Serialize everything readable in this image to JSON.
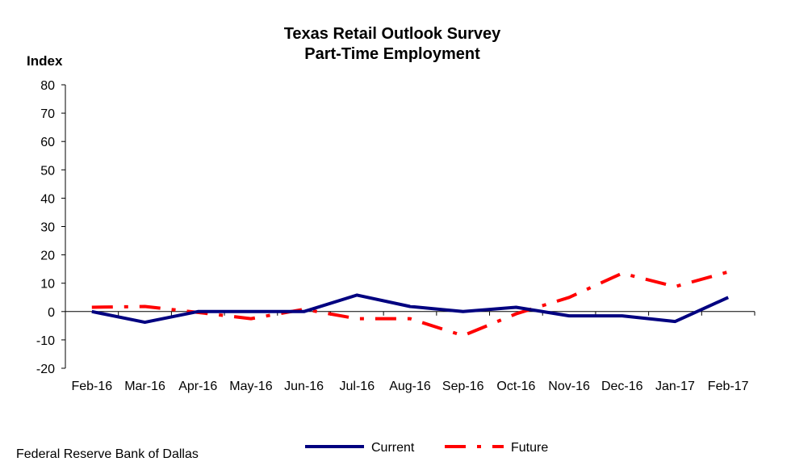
{
  "chart_data": {
    "type": "line",
    "title": "Texas Retail Outlook Survey",
    "subtitle": "Part-Time Employment",
    "ylabel": "Index",
    "xlabel": "",
    "ylim": [
      -20,
      80
    ],
    "yticks": [
      -20,
      -10,
      0,
      10,
      20,
      30,
      40,
      50,
      60,
      70,
      80
    ],
    "categories": [
      "Feb-16",
      "Mar-16",
      "Apr-16",
      "May-16",
      "Jun-16",
      "Jul-16",
      "Aug-16",
      "Sep-16",
      "Oct-16",
      "Nov-16",
      "Dec-16",
      "Jan-17",
      "Feb-17"
    ],
    "series": [
      {
        "name": "Current",
        "color": "#000080",
        "style": "solid",
        "values": [
          0.0,
          -3.8,
          0.0,
          0.0,
          0.0,
          5.8,
          1.8,
          0.0,
          1.5,
          -1.5,
          -1.5,
          -3.5,
          5.0
        ]
      },
      {
        "name": "Future",
        "color": "#ff0000",
        "style": "dash-dot",
        "values": [
          1.5,
          1.8,
          -0.3,
          -2.5,
          0.8,
          -2.5,
          -2.5,
          -8.5,
          -0.8,
          5.0,
          13.5,
          8.8,
          14.0
        ]
      }
    ],
    "grid": false,
    "legend_position": "bottom"
  },
  "source": "Federal Reserve Bank of Dallas"
}
